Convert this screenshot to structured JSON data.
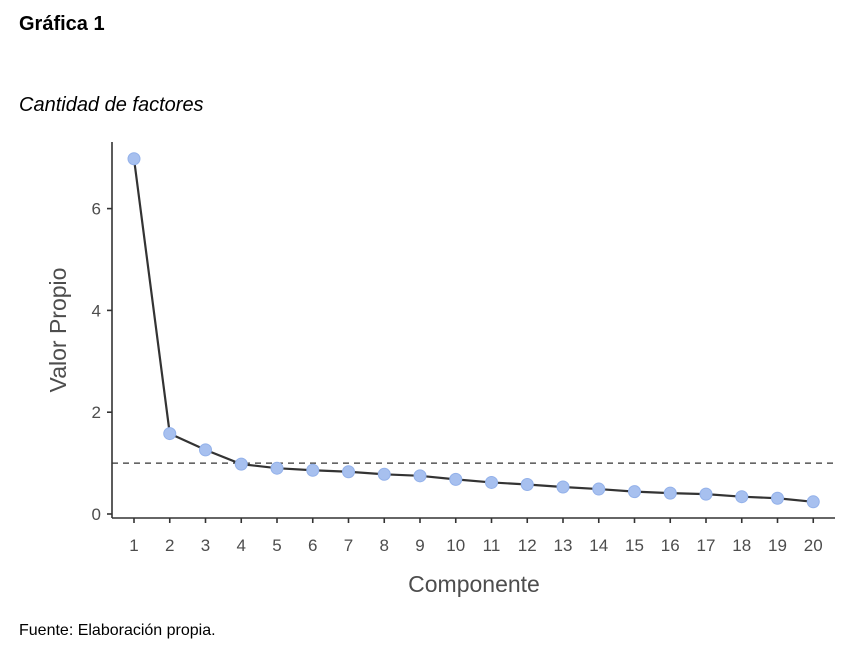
{
  "figure": {
    "number_label": "Gráfica 1",
    "title": "Cantidad de factores",
    "source": "Fuente: Elaboración propia."
  },
  "colors": {
    "line": "#333333",
    "point_fill": "#a7c0ef",
    "point_stroke": "#93b1ea",
    "axis": "#333333",
    "reference_line": "#333333",
    "tick_text": "#4d4d4d"
  },
  "chart_data": {
    "type": "line",
    "title": "Cantidad de factores",
    "xlabel": "Componente",
    "ylabel": "Valor Propio",
    "x": [
      1,
      2,
      3,
      4,
      5,
      6,
      7,
      8,
      9,
      10,
      11,
      12,
      13,
      14,
      15,
      16,
      17,
      18,
      19,
      20
    ],
    "series": [
      {
        "name": "Valor Propio",
        "values": [
          6.98,
          1.58,
          1.26,
          0.98,
          0.9,
          0.86,
          0.83,
          0.78,
          0.75,
          0.68,
          0.62,
          0.58,
          0.53,
          0.49,
          0.44,
          0.41,
          0.39,
          0.34,
          0.31,
          0.24
        ]
      }
    ],
    "reference_lines": [
      {
        "axis": "y",
        "value": 1,
        "style": "dashed"
      }
    ],
    "x_ticks": [
      "1",
      "2",
      "3",
      "4",
      "5",
      "6",
      "7",
      "8",
      "9",
      "10",
      "11",
      "12",
      "13",
      "14",
      "15",
      "16",
      "17",
      "18",
      "19",
      "20"
    ],
    "y_ticks": [
      0,
      2,
      4,
      6
    ],
    "ylim": [
      0,
      7.3
    ],
    "grid": false,
    "legend": null
  }
}
